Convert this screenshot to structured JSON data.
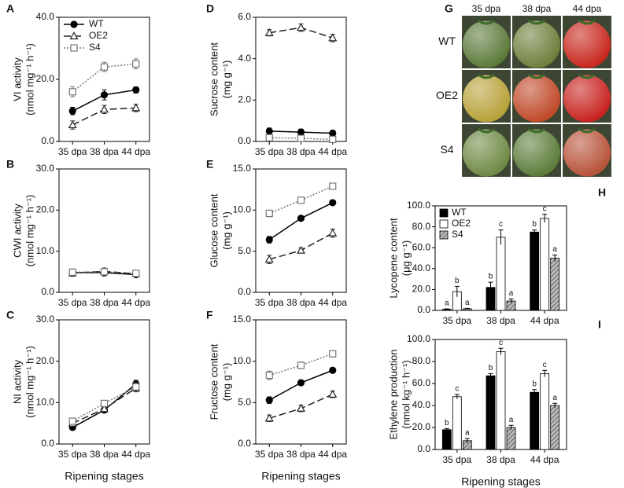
{
  "chart_data": [
    {
      "type": "line",
      "panel": "A",
      "ylabel": [
        "VI activity",
        "(nmol mg⁻¹ h⁻¹)"
      ],
      "categories": [
        "35 dpa",
        "38 dpa",
        "44 dpa"
      ],
      "ylim": [
        0,
        40
      ],
      "yticks": [
        {
          "value": 0,
          "label": "0.0"
        },
        {
          "value": 20,
          "label": "20.0"
        },
        {
          "value": 40,
          "label": "40.0"
        }
      ],
      "legend": true,
      "series": [
        {
          "name": "WT",
          "color": "#000000",
          "dash": "solid",
          "marker": "circle",
          "values": [
            9.8,
            15,
            16.6
          ],
          "errors": [
            1.2,
            1.6,
            1.0
          ]
        },
        {
          "name": "OE2",
          "color": "#222222",
          "dash": "dashed",
          "marker": "triangle",
          "values": [
            5.3,
            10.3,
            10.8
          ],
          "errors": [
            1.3,
            1.3,
            1.2
          ]
        },
        {
          "name": "S4",
          "color": "#777777",
          "dash": "dotted",
          "marker": "square",
          "values": [
            16,
            24,
            25
          ],
          "errors": [
            1.6,
            1.5,
            1.6
          ]
        }
      ]
    },
    {
      "type": "line",
      "panel": "B",
      "ylabel": [
        "CWI activity",
        "(nmol mg⁻¹ h⁻¹)"
      ],
      "categories": [
        "35 dpa",
        "38 dpa",
        "44 dpa"
      ],
      "ylim": [
        0,
        30
      ],
      "yticks": [
        {
          "value": 0,
          "label": "0.0"
        },
        {
          "value": 10,
          "label": "10.0"
        },
        {
          "value": 20,
          "label": "20.0"
        },
        {
          "value": 30,
          "label": "30.0"
        }
      ],
      "series": [
        {
          "name": "WT",
          "color": "#000000",
          "dash": "solid",
          "marker": "circle",
          "values": [
            4.8,
            4.8,
            4.3
          ],
          "errors": [
            0.8,
            0.8,
            0.5
          ]
        },
        {
          "name": "OE2",
          "color": "#222222",
          "dash": "dashed",
          "marker": "triangle",
          "values": [
            4.7,
            5.1,
            4.5
          ],
          "errors": [
            0.8,
            0.8,
            0.5
          ]
        },
        {
          "name": "S4",
          "color": "#777777",
          "dash": "dotted",
          "marker": "square",
          "values": [
            4.9,
            5.0,
            4.6
          ],
          "errors": [
            0.8,
            0.8,
            0.5
          ]
        }
      ]
    },
    {
      "type": "line",
      "panel": "C",
      "ylabel": [
        "NI activity",
        "(nmol mg⁻¹ h⁻¹)"
      ],
      "xlabel": "Ripening stages",
      "categories": [
        "35 dpa",
        "38 dpa",
        "44 dpa"
      ],
      "ylim": [
        0,
        30
      ],
      "yticks": [
        {
          "value": 0,
          "label": "0.0"
        },
        {
          "value": 10,
          "label": "10.0"
        },
        {
          "value": 20,
          "label": "20.0"
        },
        {
          "value": 30,
          "label": "30.0"
        }
      ],
      "series": [
        {
          "name": "WT",
          "color": "#000000",
          "dash": "solid",
          "marker": "circle",
          "values": [
            4,
            8.2,
            14.5
          ],
          "errors": [
            0.6,
            0.6,
            0.9
          ]
        },
        {
          "name": "OE2",
          "color": "#222222",
          "dash": "dashed",
          "marker": "triangle",
          "values": [
            5,
            8.5,
            13.5
          ],
          "errors": [
            0.6,
            0.6,
            0.9
          ]
        },
        {
          "name": "S4",
          "color": "#777777",
          "dash": "dotted",
          "marker": "square",
          "values": [
            5.5,
            9.8,
            13.8
          ],
          "errors": [
            0.6,
            0.7,
            0.9
          ]
        }
      ]
    },
    {
      "type": "line",
      "panel": "D",
      "ylabel": [
        "Sucrose content",
        "(mg g⁻¹)"
      ],
      "categories": [
        "35 dpa",
        "38 dpa",
        "44 dpa"
      ],
      "ylim": [
        0,
        6
      ],
      "yticks": [
        {
          "value": 0,
          "label": "0.0"
        },
        {
          "value": 2,
          "label": "2.0"
        },
        {
          "value": 4,
          "label": "4.0"
        },
        {
          "value": 6,
          "label": "6.0"
        }
      ],
      "series": [
        {
          "name": "WT",
          "color": "#000000",
          "dash": "solid",
          "marker": "circle",
          "values": [
            0.5,
            0.45,
            0.4
          ],
          "errors": [
            0.15,
            0.15,
            0.12
          ]
        },
        {
          "name": "OE2",
          "color": "#222222",
          "dash": "dashed",
          "marker": "triangle",
          "values": [
            5.25,
            5.5,
            5.0
          ],
          "errors": [
            0.15,
            0.18,
            0.18
          ]
        },
        {
          "name": "S4",
          "color": "#777777",
          "dash": "dotted",
          "marker": "square",
          "values": [
            0.18,
            0.15,
            0.1
          ],
          "errors": [
            0.1,
            0.1,
            0.08
          ]
        }
      ]
    },
    {
      "type": "line",
      "panel": "E",
      "ylabel": [
        "Glucose content",
        "(mg g⁻¹)"
      ],
      "categories": [
        "35 dpa",
        "38 dpa",
        "44 dpa"
      ],
      "ylim": [
        0,
        15
      ],
      "yticks": [
        {
          "value": 0,
          "label": "0.0"
        },
        {
          "value": 5,
          "label": "5.0"
        },
        {
          "value": 10,
          "label": "10.0"
        },
        {
          "value": 15,
          "label": "15.0"
        }
      ],
      "series": [
        {
          "name": "WT",
          "color": "#000000",
          "dash": "solid",
          "marker": "circle",
          "values": [
            6.4,
            9,
            10.9
          ],
          "errors": [
            0.4,
            0.2,
            0.2
          ]
        },
        {
          "name": "OE2",
          "color": "#222222",
          "dash": "dashed",
          "marker": "triangle",
          "values": [
            4,
            5.1,
            7.2
          ],
          "errors": [
            0.5,
            0.3,
            0.5
          ]
        },
        {
          "name": "S4",
          "color": "#777777",
          "dash": "dotted",
          "marker": "square",
          "values": [
            9.6,
            11.2,
            12.9
          ],
          "errors": [
            0.4,
            0.3,
            0.3
          ]
        }
      ]
    },
    {
      "type": "line",
      "panel": "F",
      "ylabel": [
        "Fructose content",
        "(mg g⁻¹)"
      ],
      "xlabel": "Ripening stages",
      "categories": [
        "35 dpa",
        "38 dpa",
        "44 dpa"
      ],
      "ylim": [
        0,
        15
      ],
      "yticks": [
        {
          "value": 0,
          "label": "0.0"
        },
        {
          "value": 5,
          "label": "5.0"
        },
        {
          "value": 10,
          "label": "10.0"
        },
        {
          "value": 15,
          "label": "15.0"
        }
      ],
      "series": [
        {
          "name": "WT",
          "color": "#000000",
          "dash": "solid",
          "marker": "circle",
          "values": [
            5.3,
            7.4,
            8.9
          ],
          "errors": [
            0.4,
            0.3,
            0.3
          ]
        },
        {
          "name": "OE2",
          "color": "#222222",
          "dash": "dashed",
          "marker": "triangle",
          "values": [
            3.1,
            4.3,
            6.0
          ],
          "errors": [
            0.4,
            0.4,
            0.4
          ]
        },
        {
          "name": "S4",
          "color": "#777777",
          "dash": "dotted",
          "marker": "square",
          "values": [
            8.3,
            9.5,
            10.9
          ],
          "errors": [
            0.5,
            0.4,
            0.4
          ]
        }
      ]
    },
    {
      "type": "bar",
      "panel": "H",
      "ylabel": [
        "Lycopene content",
        "(μg g⁻¹)"
      ],
      "categories": [
        "35 dpa",
        "38 dpa",
        "44 dpa"
      ],
      "ylim": [
        0,
        100
      ],
      "yticks": [
        {
          "value": 0,
          "label": "0.0"
        },
        {
          "value": 20,
          "label": "20.0"
        },
        {
          "value": 40,
          "label": "40.0"
        },
        {
          "value": 60,
          "label": "60.0"
        },
        {
          "value": 80,
          "label": "80.0"
        },
        {
          "value": 100,
          "label": "100.0"
        }
      ],
      "legend": true,
      "series": [
        {
          "name": "WT",
          "color": "#000000",
          "values": [
            1,
            22,
            75
          ],
          "errors": [
            0.5,
            5,
            2
          ],
          "letters": [
            "a",
            "b",
            "b"
          ]
        },
        {
          "name": "OE2",
          "color": "#ffffff",
          "values": [
            18,
            70,
            88
          ],
          "errors": [
            5,
            7,
            4
          ],
          "letters": [
            "b",
            "c",
            "c"
          ]
        },
        {
          "name": "S4",
          "color": "#999999",
          "hatch": true,
          "values": [
            1.5,
            9,
            50
          ],
          "errors": [
            0.5,
            2,
            3
          ],
          "letters": [
            "a",
            "a",
            "a"
          ]
        }
      ]
    },
    {
      "type": "bar",
      "panel": "I",
      "ylabel": [
        "Ethylene production",
        "(nmol kg⁻¹ h⁻¹)"
      ],
      "xlabel": "Ripening stages",
      "categories": [
        "35 dpa",
        "38 dpa",
        "44 dpa"
      ],
      "ylim": [
        0,
        100
      ],
      "yticks": [
        {
          "value": 0,
          "label": "0.0"
        },
        {
          "value": 20,
          "label": "20.0"
        },
        {
          "value": 40,
          "label": "40.0"
        },
        {
          "value": 60,
          "label": "60.0"
        },
        {
          "value": 80,
          "label": "80.0"
        },
        {
          "value": 100,
          "label": "100.0"
        }
      ],
      "series": [
        {
          "name": "WT",
          "color": "#000000",
          "values": [
            18,
            67,
            52
          ],
          "errors": [
            1,
            2,
            2.5
          ],
          "letters": [
            "b",
            "b",
            "b"
          ]
        },
        {
          "name": "OE2",
          "color": "#ffffff",
          "values": [
            48,
            89,
            69
          ],
          "errors": [
            2,
            3,
            3
          ],
          "letters": [
            "c",
            "c",
            "c"
          ]
        },
        {
          "name": "S4",
          "color": "#999999",
          "hatch": true,
          "values": [
            8,
            20,
            40
          ],
          "errors": [
            2,
            2,
            2
          ],
          "letters": [
            "a",
            "a",
            "a"
          ]
        }
      ]
    }
  ],
  "photo_panel": {
    "panel": "G",
    "columns": [
      "35 dpa",
      "38 dpa",
      "44 dpa"
    ],
    "rows": [
      "WT",
      "OE2",
      "S4"
    ]
  }
}
